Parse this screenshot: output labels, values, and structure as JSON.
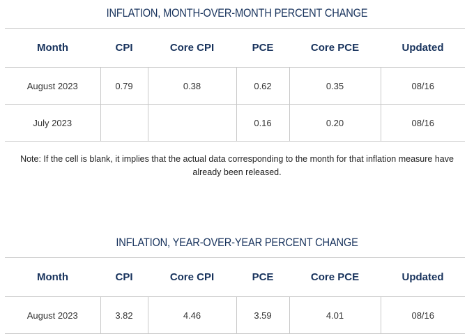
{
  "mom": {
    "title": "INFLATION, MONTH-OVER-MONTH PERCENT CHANGE",
    "headers": [
      "Month",
      "CPI",
      "Core CPI",
      "PCE",
      "Core PCE",
      "Updated"
    ],
    "rows": [
      [
        "August 2023",
        "0.79",
        "0.38",
        "0.62",
        "0.35",
        "08/16"
      ],
      [
        "July 2023",
        "",
        "",
        "0.16",
        "0.20",
        "08/16"
      ]
    ]
  },
  "note": "Note: If the cell is blank, it implies that the actual data corresponding to the month for that inflation measure have already been released.",
  "yoy": {
    "title": "INFLATION, YEAR-OVER-YEAR PERCENT CHANGE",
    "headers": [
      "Month",
      "CPI",
      "Core CPI",
      "PCE",
      "Core PCE",
      "Updated"
    ],
    "rows": [
      [
        "August 2023",
        "3.82",
        "4.46",
        "3.59",
        "4.01",
        "08/16"
      ]
    ]
  }
}
